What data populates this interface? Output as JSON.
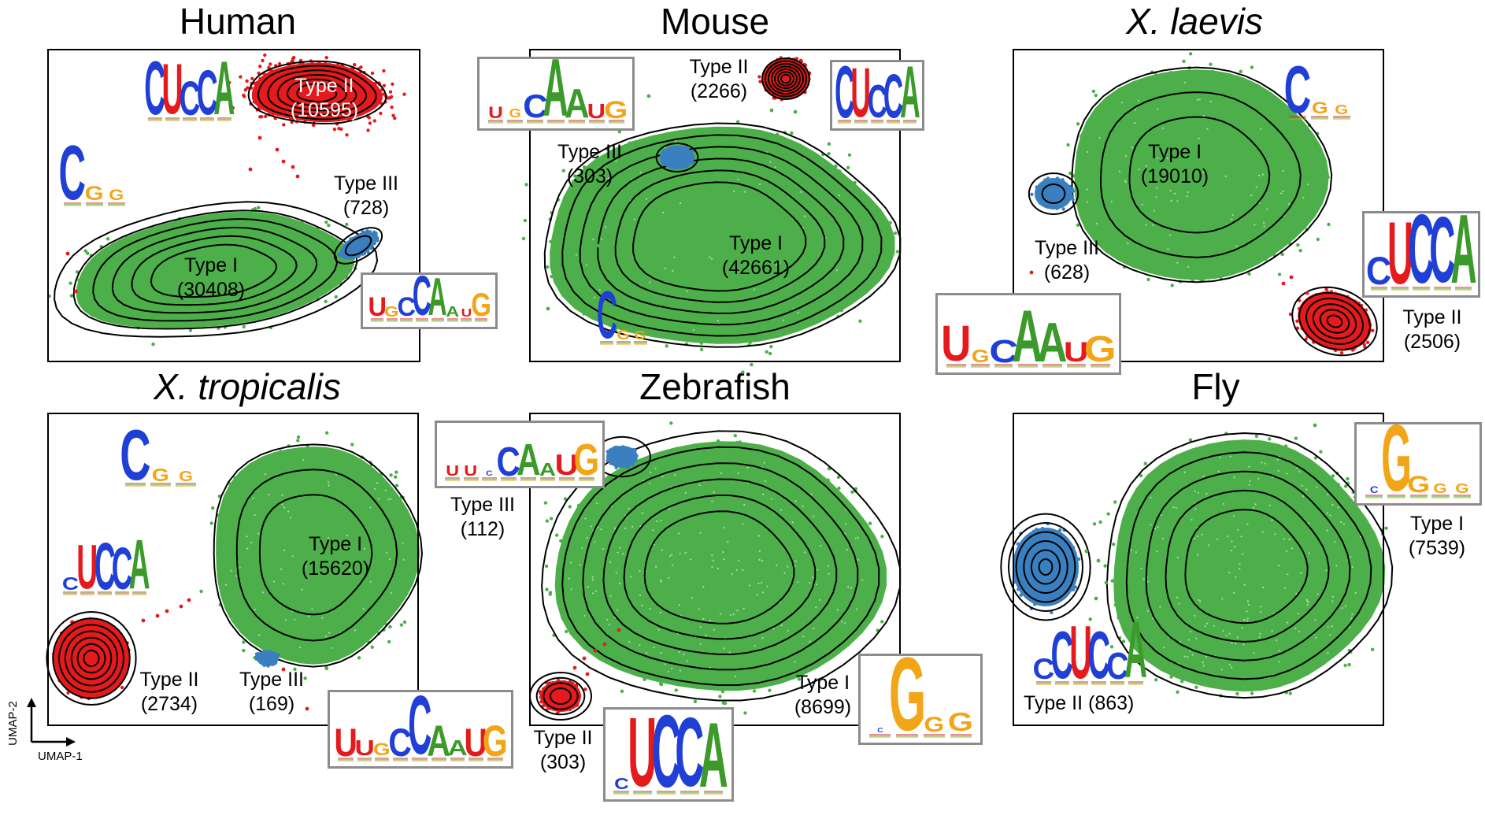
{
  "colors": {
    "type_I": "#4daf4a",
    "type_II": "#e41a1c",
    "type_III": "#3a7fbf",
    "base_U": "#e41a1c",
    "base_C": "#1f3fd6",
    "base_G": "#f2a516",
    "base_A": "#3b9a2a",
    "logo_border": "#8c8c8c"
  },
  "axes": {
    "x": "UMAP-1",
    "y": "UMAP-2"
  },
  "panels": [
    {
      "id": "human",
      "title": "Human",
      "italic": false,
      "clusters": [
        {
          "type": "Type II",
          "count_label": "(10595)",
          "count": 10595
        },
        {
          "type": "Type III",
          "count_label": "(728)",
          "count": 728
        },
        {
          "type": "Type I",
          "count_label": "(30408)",
          "count": 30408
        }
      ],
      "logos": [
        {
          "for": "Type II",
          "motif": "CUCCA"
        },
        {
          "for": "Type I",
          "motif": "CGG"
        },
        {
          "for": "Type III",
          "motif": "UGCCAAUG"
        }
      ]
    },
    {
      "id": "mouse",
      "title": "Mouse",
      "italic": false,
      "clusters": [
        {
          "type": "Type II",
          "count_label": "(2266)",
          "count": 2266
        },
        {
          "type": "Type III",
          "count_label": "(303)",
          "count": 303
        },
        {
          "type": "Type I",
          "count_label": "(42661)",
          "count": 42661
        }
      ],
      "logos": [
        {
          "for": "Type III",
          "motif": "UGCAAUG"
        },
        {
          "for": "Type II",
          "motif": "CUCCA"
        },
        {
          "for": "Type I",
          "motif": "CGG"
        }
      ]
    },
    {
      "id": "xlaevis",
      "title": "X. laevis",
      "italic": true,
      "clusters": [
        {
          "type": "Type I",
          "count_label": "(19010)",
          "count": 19010
        },
        {
          "type": "Type III",
          "count_label": "(628)",
          "count": 628
        },
        {
          "type": "Type II",
          "count_label": "(2506)",
          "count": 2506
        }
      ],
      "logos": [
        {
          "for": "Type I",
          "motif": "CGG"
        },
        {
          "for": "Type II",
          "motif": "CUCCA"
        },
        {
          "for": "Type III",
          "motif": "UGCAAUG"
        }
      ]
    },
    {
      "id": "xtropicalis",
      "title": "X. tropicalis",
      "italic": true,
      "clusters": [
        {
          "type": "Type I",
          "count_label": "(15620)",
          "count": 15620
        },
        {
          "type": "Type II",
          "count_label": "(2734)",
          "count": 2734
        },
        {
          "type": "Type III",
          "count_label": "(169)",
          "count": 169
        }
      ],
      "logos": [
        {
          "for": "Type I",
          "motif": "CGG"
        },
        {
          "for": "Type II",
          "motif": "CUCCA"
        },
        {
          "for": "Type III",
          "motif": "UUGCCAAUG"
        }
      ]
    },
    {
      "id": "zebrafish",
      "title": "Zebrafish",
      "italic": false,
      "clusters": [
        {
          "type": "Type III",
          "count_label": "(112)",
          "count": 112
        },
        {
          "type": "Type I",
          "count_label": "(8699)",
          "count": 8699
        },
        {
          "type": "Type II",
          "count_label": "(303)",
          "count": 303
        }
      ],
      "logos": [
        {
          "for": "Type III",
          "motif": "UUCCAAUG"
        },
        {
          "for": "Type I",
          "motif": "CGGG"
        },
        {
          "for": "Type II",
          "motif": "CUCCA"
        }
      ]
    },
    {
      "id": "fly",
      "title": "Fly",
      "italic": false,
      "clusters": [
        {
          "type": "Type I",
          "count_label": "(7539)",
          "count": 7539
        },
        {
          "type": "Type II",
          "count_label": "(863)",
          "count": 863
        }
      ],
      "logos": [
        {
          "for": "Type I",
          "motif": "CGGGG"
        },
        {
          "for": "Type II",
          "motif": "CCUCCA"
        }
      ]
    }
  ],
  "chart_data": [
    {
      "type": "scatter",
      "title": "Human",
      "xlabel": "UMAP-1",
      "ylabel": "UMAP-2",
      "series": [
        {
          "name": "Type I",
          "count": 30408
        },
        {
          "name": "Type II",
          "count": 10595
        },
        {
          "name": "Type III",
          "count": 728
        }
      ]
    },
    {
      "type": "scatter",
      "title": "Mouse",
      "xlabel": "UMAP-1",
      "ylabel": "UMAP-2",
      "series": [
        {
          "name": "Type I",
          "count": 42661
        },
        {
          "name": "Type II",
          "count": 2266
        },
        {
          "name": "Type III",
          "count": 303
        }
      ]
    },
    {
      "type": "scatter",
      "title": "X. laevis",
      "xlabel": "UMAP-1",
      "ylabel": "UMAP-2",
      "series": [
        {
          "name": "Type I",
          "count": 19010
        },
        {
          "name": "Type II",
          "count": 2506
        },
        {
          "name": "Type III",
          "count": 628
        }
      ]
    },
    {
      "type": "scatter",
      "title": "X. tropicalis",
      "xlabel": "UMAP-1",
      "ylabel": "UMAP-2",
      "series": [
        {
          "name": "Type I",
          "count": 15620
        },
        {
          "name": "Type II",
          "count": 2734
        },
        {
          "name": "Type III",
          "count": 169
        }
      ]
    },
    {
      "type": "scatter",
      "title": "Zebrafish",
      "xlabel": "UMAP-1",
      "ylabel": "UMAP-2",
      "series": [
        {
          "name": "Type I",
          "count": 8699
        },
        {
          "name": "Type II",
          "count": 303
        },
        {
          "name": "Type III",
          "count": 112
        }
      ]
    },
    {
      "type": "scatter",
      "title": "Fly",
      "xlabel": "UMAP-1",
      "ylabel": "UMAP-2",
      "series": [
        {
          "name": "Type I",
          "count": 7539
        },
        {
          "name": "Type II",
          "count": 863
        }
      ]
    }
  ]
}
